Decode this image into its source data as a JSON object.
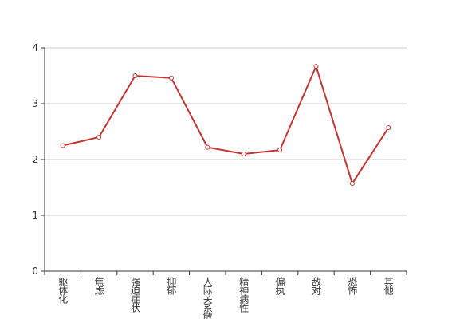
{
  "chart_data": {
    "type": "line",
    "categories": [
      "躯体化",
      "焦虑",
      "强迫症状",
      "抑郁",
      "人际关系敏感",
      "精神病性",
      "偏执",
      "敌对",
      "恐怖",
      "其他"
    ],
    "values": [
      2.25,
      2.4,
      3.5,
      3.46,
      2.22,
      2.1,
      2.17,
      3.67,
      1.57,
      2.57
    ],
    "color": "#c23531",
    "ylim": [
      0,
      4
    ],
    "yticks": [
      0,
      1,
      2,
      3,
      4
    ],
    "grid": true
  }
}
